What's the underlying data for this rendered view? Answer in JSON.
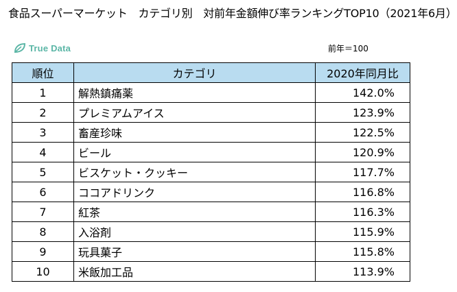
{
  "title": "食品スーパーマーケット　カテゴリ別　対前年金額伸び率ランキングTOP10（2021年6月）",
  "logo": {
    "text": "True Data"
  },
  "base_note": "前年＝100",
  "table": {
    "headers": [
      "順位",
      "カテゴリ",
      "2020年同月比"
    ],
    "rows": [
      [
        "1",
        "解熱鎮痛薬",
        "142.0%"
      ],
      [
        "2",
        "プレミアムアイス",
        "123.9%"
      ],
      [
        "3",
        "畜産珍味",
        "122.5%"
      ],
      [
        "4",
        "ビール",
        "120.9%"
      ],
      [
        "5",
        "ビスケット・クッキー",
        "117.7%"
      ],
      [
        "6",
        "ココアドリンク",
        "116.8%"
      ],
      [
        "7",
        "紅茶",
        "116.3%"
      ],
      [
        "8",
        "入浴剤",
        "115.9%"
      ],
      [
        "9",
        "玩具菓子",
        "115.8%"
      ],
      [
        "10",
        "米飯加工品",
        "113.9%"
      ]
    ]
  }
}
